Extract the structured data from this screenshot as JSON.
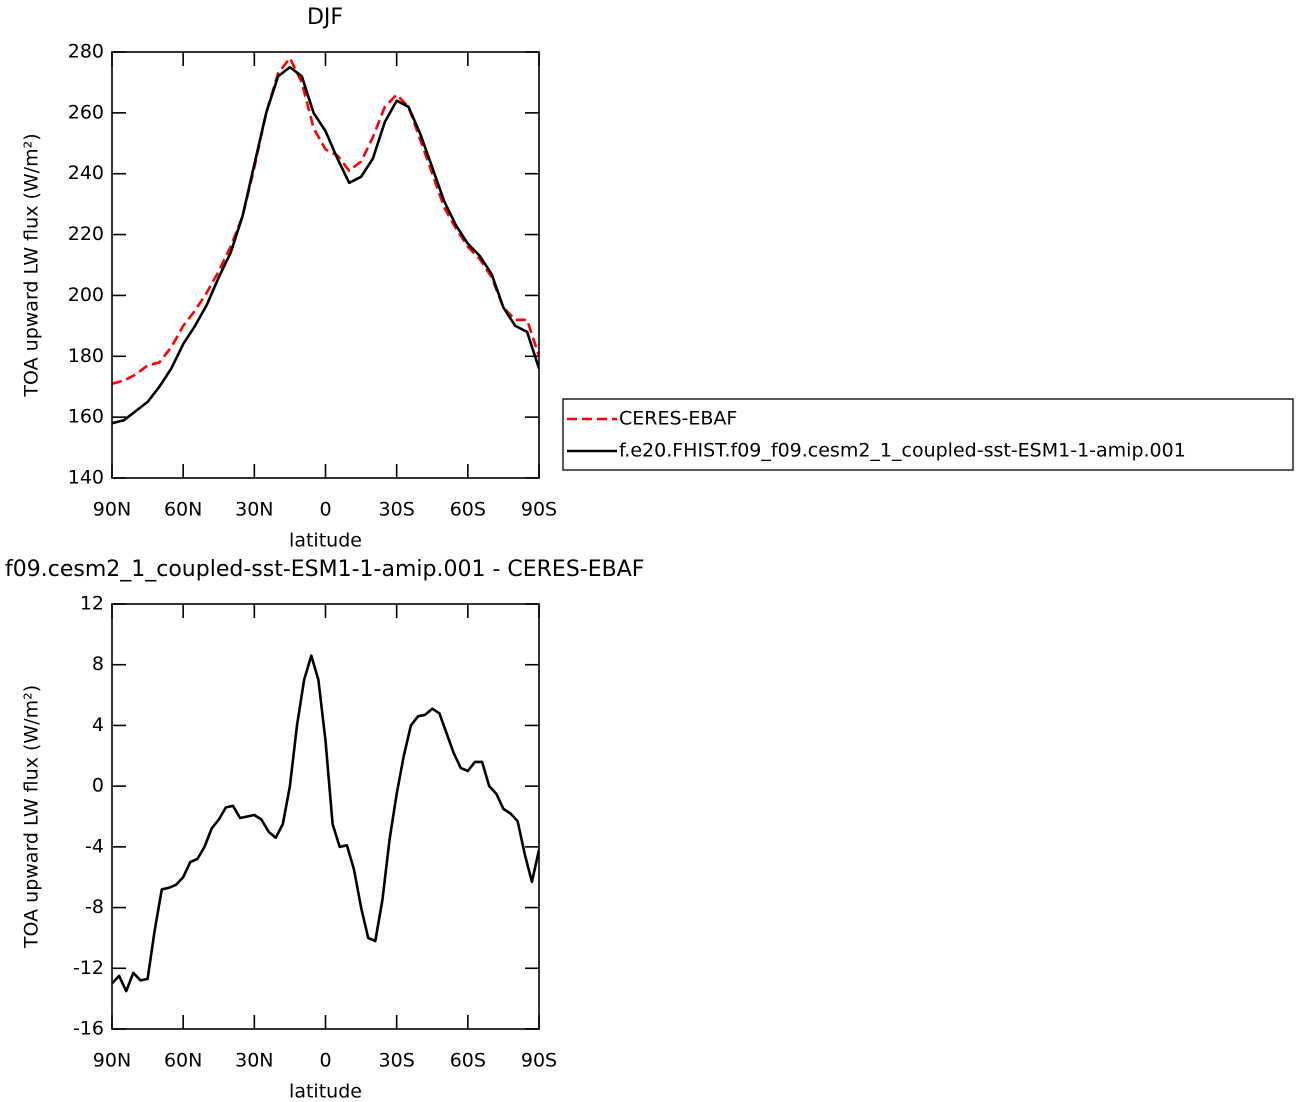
{
  "chart_data": [
    {
      "type": "line",
      "title": "DJF",
      "xlabel": "latitude",
      "ylabel": "TOA upward LW flux (W/m²)",
      "x": [
        90,
        85,
        80,
        75,
        70,
        65,
        60,
        55,
        50,
        45,
        40,
        35,
        30,
        25,
        20,
        15,
        10,
        5,
        0,
        -5,
        -10,
        -15,
        -20,
        -25,
        -30,
        -35,
        -40,
        -45,
        -50,
        -55,
        -60,
        -65,
        -70,
        -75,
        -80,
        -85,
        -90
      ],
      "xlim": [
        90,
        -90
      ],
      "xticks": [
        {
          "value": 90,
          "label": "90N"
        },
        {
          "value": 60,
          "label": "60N"
        },
        {
          "value": 30,
          "label": "30N"
        },
        0,
        {
          "value": -30,
          "label": "30S"
        },
        {
          "value": -60,
          "label": "60S"
        },
        {
          "value": -90,
          "label": "90S"
        }
      ],
      "ylim": [
        140,
        280
      ],
      "yticks": [
        140,
        160,
        180,
        200,
        220,
        240,
        260,
        280
      ],
      "legend": "right",
      "series": [
        {
          "name": "CERES-EBAF",
          "color": "#ff0000",
          "linestyle": "dashed",
          "values": [
            171,
            172,
            174,
            177,
            178,
            183,
            190,
            195,
            201,
            208,
            216,
            226,
            242,
            260,
            273,
            278,
            270,
            255,
            248,
            246,
            241,
            244,
            252,
            262,
            266,
            262,
            251,
            240,
            229,
            222,
            216,
            212,
            206,
            196,
            192,
            192,
            180
          ]
        },
        {
          "name": "f.e20.FHIST.f09_f09.cesm2_1_coupled-sst-ESM1-1-amip.001",
          "color": "#000000",
          "linestyle": "solid",
          "values": [
            158,
            159,
            162,
            165,
            170,
            176,
            184,
            190,
            197,
            206,
            214,
            226,
            243,
            260,
            272,
            275,
            272,
            260,
            254,
            245,
            237,
            239,
            245,
            257,
            264,
            262,
            253,
            242,
            231,
            223,
            217,
            213,
            207,
            196,
            190,
            188,
            176
          ]
        }
      ]
    },
    {
      "type": "line",
      "title": "f09.cesm2_1_coupled-sst-ESM1-1-amip.001 - CERES-EBAF",
      "xlabel": "latitude",
      "ylabel": "TOA upward LW flux (W/m²)",
      "x": [
        90,
        87,
        84,
        81,
        78,
        75,
        72,
        69,
        66,
        63,
        60,
        57,
        54,
        51,
        48,
        45,
        42,
        39,
        36,
        33,
        30,
        27,
        24,
        21,
        18,
        15,
        12,
        9,
        6,
        3,
        0,
        -3,
        -6,
        -9,
        -12,
        -15,
        -18,
        -21,
        -24,
        -27,
        -30,
        -33,
        -36,
        -39,
        -42,
        -45,
        -48,
        -51,
        -54,
        -57,
        -60,
        -63,
        -66,
        -69,
        -72,
        -75,
        -78,
        -81,
        -84,
        -87,
        -90
      ],
      "xlim": [
        90,
        -90
      ],
      "xticks": [
        {
          "value": 90,
          "label": "90N"
        },
        {
          "value": 60,
          "label": "60N"
        },
        {
          "value": 30,
          "label": "30N"
        },
        0,
        {
          "value": -30,
          "label": "30S"
        },
        {
          "value": -60,
          "label": "60S"
        },
        {
          "value": -90,
          "label": "90S"
        }
      ],
      "ylim": [
        -16,
        12
      ],
      "yticks": [
        -16,
        -12,
        -8,
        -4,
        0,
        4,
        8,
        12
      ],
      "series": [
        {
          "color": "#000000",
          "linestyle": "solid",
          "values": [
            -13,
            -12.5,
            -13.5,
            -12.3,
            -12.8,
            -12.7,
            -9.5,
            -6.8,
            -6.7,
            -6.5,
            -6,
            -5,
            -4.8,
            -4,
            -2.8,
            -2.2,
            -1.4,
            -1.3,
            -2.1,
            -2,
            -1.9,
            -2.2,
            -3,
            -3.4,
            -2.5,
            0,
            4,
            7,
            8.6,
            7,
            3,
            -2.5,
            -4,
            -3.9,
            -5.5,
            -8,
            -10,
            -10.2,
            -7.5,
            -3.5,
            -0.5,
            2,
            4,
            4.6,
            4.7,
            5.1,
            4.8,
            3.5,
            2.2,
            1.2,
            1,
            1.6,
            1.6,
            0,
            -0.5,
            -1.5,
            -1.8,
            -2.3,
            -4.5,
            -6.3,
            -4.2
          ]
        }
      ]
    }
  ]
}
